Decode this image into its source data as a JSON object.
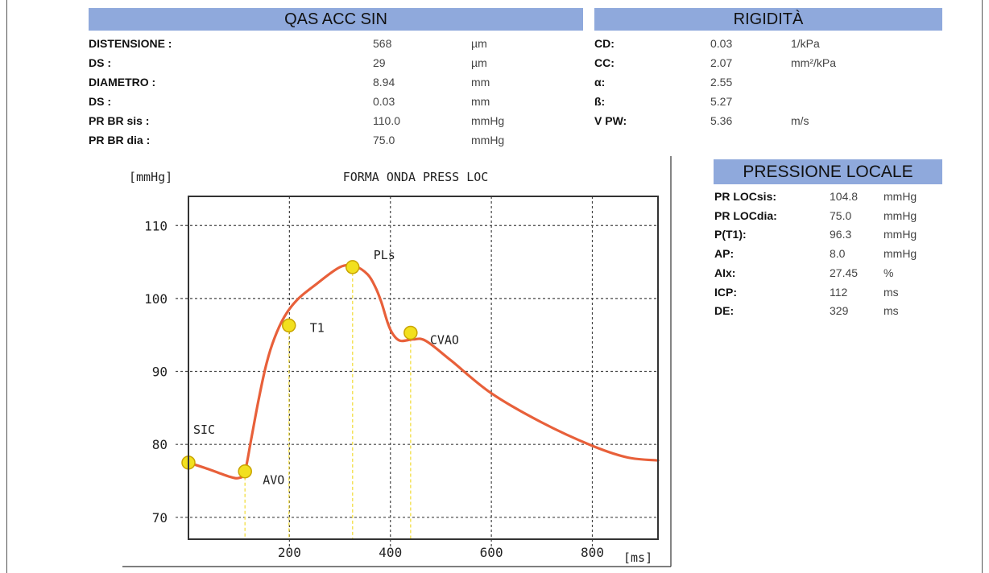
{
  "qas": {
    "title": "QAS ACC SIN",
    "rows": [
      {
        "label": "DISTENSIONE :",
        "value": "568",
        "unit": "µm"
      },
      {
        "label": "DS :",
        "value": "29",
        "unit": "µm"
      },
      {
        "label": "DIAMETRO :",
        "value": "8.94",
        "unit": "mm"
      },
      {
        "label": "DS :",
        "value": "0.03",
        "unit": "mm"
      },
      {
        "label": "PR BR sis :",
        "value": "110.0",
        "unit": "mmHg"
      },
      {
        "label": "PR BR dia :",
        "value": "75.0",
        "unit": "mmHg"
      }
    ]
  },
  "rigidita": {
    "title": "RIGIDITÀ",
    "rows": [
      {
        "label": "CD:",
        "value": "0.03",
        "unit": "1/kPa"
      },
      {
        "label": "CC:",
        "value": "2.07",
        "unit": "mm²/kPa"
      },
      {
        "label": "α:",
        "value": "2.55",
        "unit": ""
      },
      {
        "label": "ß:",
        "value": "5.27",
        "unit": ""
      },
      {
        "label": "V PW:",
        "value": "5.36",
        "unit": "m/s"
      }
    ]
  },
  "pressione": {
    "title": "PRESSIONE LOCALE",
    "rows": [
      {
        "label": "PR LOCsis:",
        "value": "104.8",
        "unit": "mmHg"
      },
      {
        "label": "PR LOCdia:",
        "value": "75.0",
        "unit": "mmHg"
      },
      {
        "label": "P(T1):",
        "value": "96.3",
        "unit": "mmHg"
      },
      {
        "label": "AP:",
        "value": "8.0",
        "unit": "mmHg"
      },
      {
        "label": "AIx:",
        "value": "27.45",
        "unit": "%"
      },
      {
        "label": "ICP:",
        "value": "112",
        "unit": "ms"
      },
      {
        "label": "DE:",
        "value": "329",
        "unit": "ms"
      }
    ]
  },
  "chart_data": {
    "type": "line",
    "title": "FORMA ONDA PRESS LOC",
    "ylabel": "[mmHg]",
    "xlabel": "[ms]",
    "xlim": [
      0,
      930
    ],
    "ylim": [
      67,
      114
    ],
    "xticks": [
      200,
      400,
      600,
      800
    ],
    "yticks": [
      70,
      80,
      90,
      100,
      110
    ],
    "grid": true,
    "colors": {
      "line": "#e8603a",
      "marker": "#f2e01e",
      "marker_edge": "#c9a400",
      "drop": "#f4e25a"
    },
    "series": [
      {
        "x": [
          0,
          40,
          80,
          100,
          112,
          125,
          140,
          155,
          170,
          190,
          215,
          250,
          300,
          330,
          355,
          370,
          382,
          395,
          405,
          420,
          445,
          470,
          520,
          600,
          700,
          800,
          870,
          930
        ],
        "y": [
          77.5,
          76.6,
          75.6,
          75.4,
          76.3,
          81,
          86.5,
          91.2,
          94.5,
          97.5,
          99.8,
          101.8,
          104.3,
          104.4,
          103.3,
          101.6,
          99.5,
          96.6,
          95.1,
          94.2,
          94.4,
          94.2,
          91.5,
          87,
          83,
          79.8,
          78.2,
          77.8
        ]
      }
    ],
    "markers": [
      {
        "label": "SIC",
        "x": 0,
        "y": 77.5
      },
      {
        "label": "AVO",
        "x": 112,
        "y": 76.3
      },
      {
        "label": "T1",
        "x": 199,
        "y": 96.3
      },
      {
        "label": "PLs",
        "x": 325,
        "y": 104.3
      },
      {
        "label": "CVAO",
        "x": 440,
        "y": 95.3
      }
    ]
  }
}
